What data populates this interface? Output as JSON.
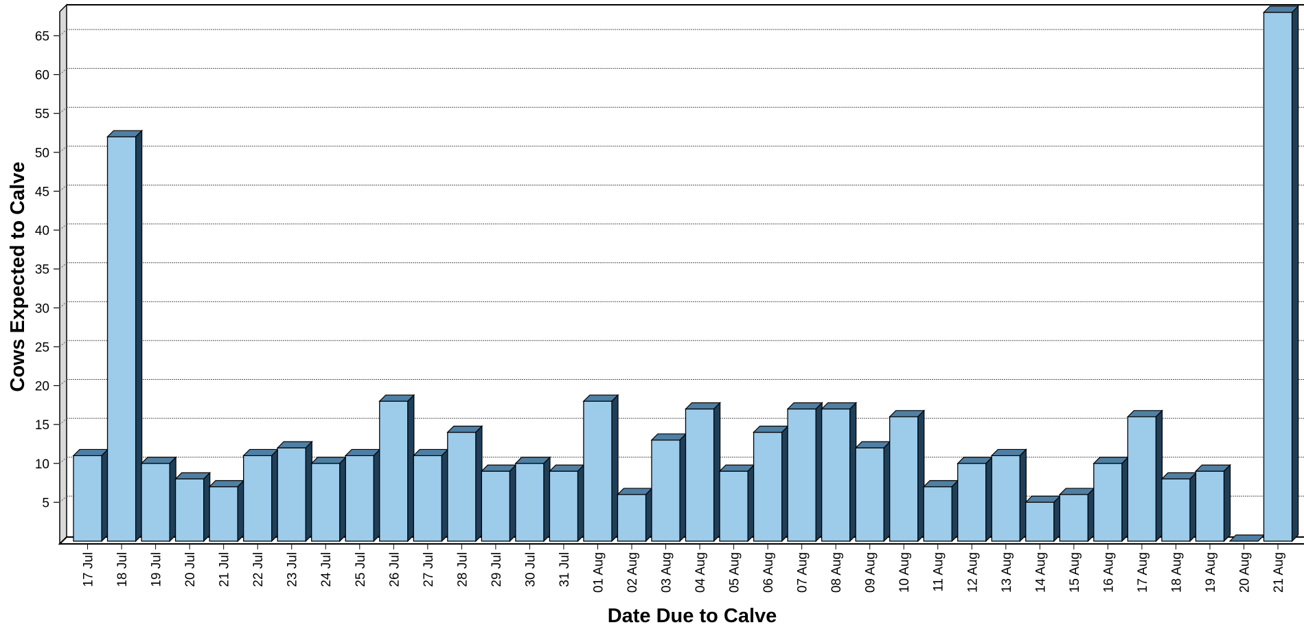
{
  "chart_data": {
    "type": "bar",
    "style": "3d",
    "title": "",
    "xlabel": "Date Due to Calve",
    "ylabel": "Cows Expected to Calve",
    "categories": [
      "17 Jul",
      "18 Jul",
      "19 Jul",
      "20 Jul",
      "21 Jul",
      "22 Jul",
      "23 Jul",
      "24 Jul",
      "25 Jul",
      "26 Jul",
      "27 Jul",
      "28 Jul",
      "29 Jul",
      "30 Jul",
      "31 Jul",
      "01 Aug",
      "02 Aug",
      "03 Aug",
      "04 Aug",
      "05 Aug",
      "06 Aug",
      "07 Aug",
      "08 Aug",
      "09 Aug",
      "10 Aug",
      "11 Aug",
      "12 Aug",
      "13 Aug",
      "14 Aug",
      "15 Aug",
      "16 Aug",
      "17 Aug",
      "18 Aug",
      "19 Aug",
      "20 Aug",
      "21 Aug"
    ],
    "values": [
      11,
      52,
      10,
      8,
      7,
      11,
      12,
      10,
      11,
      18,
      11,
      14,
      9,
      10,
      9,
      18,
      6,
      13,
      17,
      9,
      14,
      17,
      17,
      12,
      16,
      7,
      10,
      11,
      5,
      6,
      10,
      16,
      8,
      9,
      0,
      68
    ],
    "ylim": [
      0,
      68
    ],
    "yticks": [
      5,
      10,
      15,
      20,
      25,
      30,
      35,
      40,
      45,
      50,
      55,
      60,
      65
    ],
    "grid": true,
    "colors": {
      "bar_front": "#9dcbea",
      "bar_top": "#4f7fa3",
      "bar_side": "#1f3f59",
      "wall": "#d9d9d9",
      "grid": "#555555"
    }
  }
}
